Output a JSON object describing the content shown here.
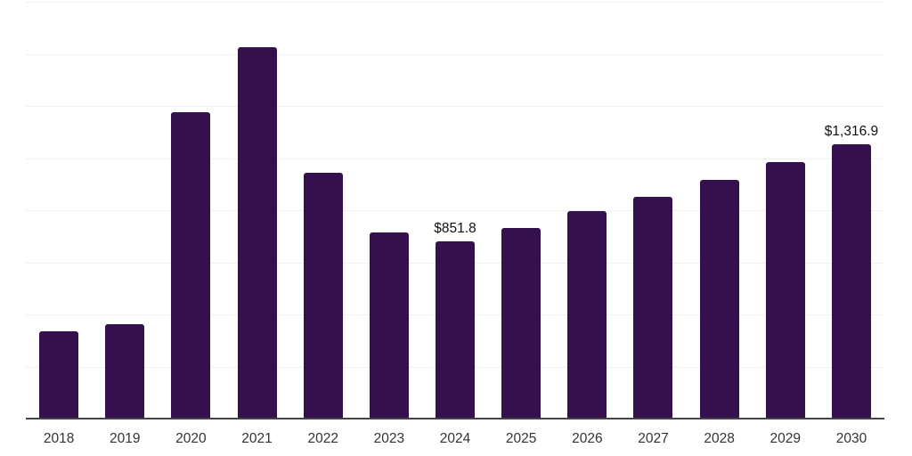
{
  "chart_data": {
    "type": "bar",
    "title": "",
    "xlabel": "",
    "ylabel": "",
    "categories": [
      "2018",
      "2019",
      "2020",
      "2021",
      "2022",
      "2023",
      "2024",
      "2025",
      "2026",
      "2027",
      "2028",
      "2029",
      "2030"
    ],
    "values": [
      420,
      455,
      1470,
      1780,
      1180,
      895,
      851.8,
      915,
      995,
      1065,
      1145,
      1230,
      1316.9
    ],
    "value_labels": [
      null,
      null,
      null,
      null,
      null,
      null,
      "$851.8",
      null,
      null,
      null,
      null,
      null,
      "$1,316.9"
    ],
    "ylim": [
      0,
      2000
    ],
    "gridline_step": 250,
    "grid": true,
    "y_tick_labels_visible": false,
    "legend_position": "none",
    "colors": {
      "bar": "#34104C",
      "gridline": "#f1f1f1",
      "axis_line": "#454545",
      "tick_label": "#333333",
      "value_label": "#111111",
      "background": "#ffffff"
    }
  }
}
